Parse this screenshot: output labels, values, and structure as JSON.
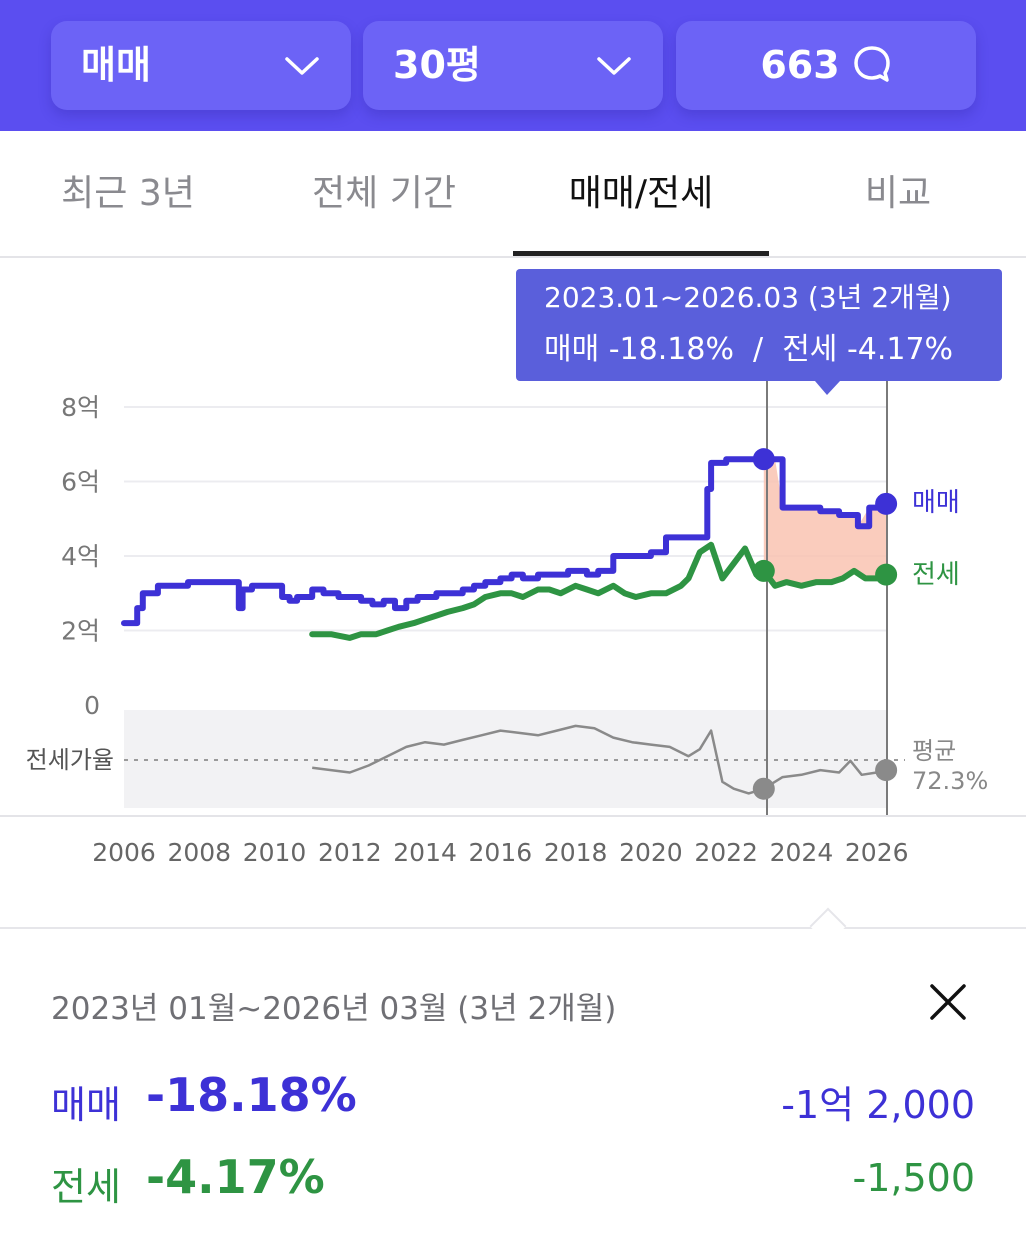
{
  "header": {
    "trade_type": "매매",
    "area": "30평",
    "comment_count": "663"
  },
  "tabs": [
    {
      "label": "최근 3년"
    },
    {
      "label": "전체 기간"
    },
    {
      "label": "매매/전세"
    },
    {
      "label": "비교"
    }
  ],
  "tooltip": {
    "range": "2023.01~2026.03 (3년 2개월)",
    "change": "매매 -18.18%  /  전세 -4.17%"
  },
  "chart_labels": {
    "y_ticks": [
      "8억",
      "6억",
      "4억",
      "2억",
      "0"
    ],
    "x_ticks": [
      "2006",
      "2008",
      "2010",
      "2012",
      "2014",
      "2016",
      "2018",
      "2020",
      "2022",
      "2024",
      "2026"
    ],
    "ratio_label": "전세가율",
    "avg_label": "평균",
    "avg_value": "72.3%",
    "sale_series": "매매",
    "jeonse_series": "전세"
  },
  "colors": {
    "sale": "#3D31D6",
    "jeonse": "#2E9443",
    "ratio": "#8a8a8a",
    "highlight": "#F9C3B1",
    "tooltip": "#5A5FDB",
    "header": "#5B4EF0"
  },
  "summary": {
    "range": "2023년 01월~2026년 03월 (3년 2개월)",
    "sale_label": "매매",
    "sale_pct": "-18.18%",
    "sale_amount": "-1억 2,000",
    "jeonse_label": "전세",
    "jeonse_pct": "-4.17%",
    "jeonse_amount": "-1,500"
  },
  "chart_data": {
    "type": "line",
    "ylim": [
      0,
      8
    ],
    "y_unit": "억",
    "xlim": [
      2006,
      2026.3
    ],
    "series": [
      {
        "name": "매매",
        "x": [
          2006.0,
          2006.2,
          2006.35,
          2006.5,
          2006.9,
          2007.0,
          2007.7,
          2008.0,
          2008.5,
          2009.0,
          2009.05,
          2009.15,
          2009.4,
          2009.8,
          2010.0,
          2010.2,
          2010.4,
          2010.6,
          2011.0,
          2011.3,
          2011.7,
          2012.0,
          2012.3,
          2012.6,
          2012.9,
          2013.2,
          2013.5,
          2013.8,
          2014.0,
          2014.3,
          2014.6,
          2015.0,
          2015.3,
          2015.6,
          2016.0,
          2016.3,
          2016.6,
          2017.0,
          2017.4,
          2017.8,
          2018.0,
          2018.3,
          2018.6,
          2019.0,
          2019.4,
          2019.8,
          2020.0,
          2020.4,
          2020.8,
          2021.2,
          2021.5,
          2021.6,
          2022.0,
          2022.5,
          2022.9,
          2023.0,
          2023.3,
          2023.5,
          2024.0,
          2024.5,
          2025.0,
          2025.4,
          2025.5,
          2025.8,
          2026.0,
          2026.25
        ],
        "values": [
          2.2,
          2.2,
          2.6,
          3.0,
          3.2,
          3.2,
          3.3,
          3.3,
          3.3,
          3.3,
          2.6,
          3.1,
          3.2,
          3.2,
          3.2,
          2.9,
          2.8,
          2.9,
          3.1,
          3.0,
          2.9,
          2.9,
          2.8,
          2.7,
          2.8,
          2.6,
          2.8,
          2.9,
          2.9,
          3.0,
          3.0,
          3.1,
          3.2,
          3.3,
          3.4,
          3.5,
          3.4,
          3.5,
          3.5,
          3.6,
          3.6,
          3.5,
          3.6,
          4.0,
          4.0,
          4.0,
          4.1,
          4.5,
          4.5,
          4.5,
          5.8,
          6.5,
          6.6,
          6.6,
          6.6,
          6.6,
          6.6,
          5.3,
          5.3,
          5.2,
          5.1,
          5.1,
          4.8,
          5.3,
          5.3,
          5.4
        ]
      },
      {
        "name": "전세",
        "x": [
          2011.0,
          2011.5,
          2012.0,
          2012.3,
          2012.7,
          2013.0,
          2013.3,
          2013.7,
          2014.0,
          2014.3,
          2014.6,
          2015.0,
          2015.3,
          2015.6,
          2016.0,
          2016.3,
          2016.6,
          2017.0,
          2017.3,
          2017.6,
          2018.0,
          2018.3,
          2018.6,
          2019.0,
          2019.3,
          2019.6,
          2020.0,
          2020.4,
          2020.8,
          2021.0,
          2021.3,
          2021.6,
          2021.9,
          2022.2,
          2022.5,
          2022.8,
          2023.0,
          2023.3,
          2023.6,
          2024.0,
          2024.4,
          2024.8,
          2025.1,
          2025.4,
          2025.7,
          2026.0,
          2026.25
        ],
        "values": [
          1.9,
          1.9,
          1.8,
          1.9,
          1.9,
          2.0,
          2.1,
          2.2,
          2.3,
          2.4,
          2.5,
          2.6,
          2.7,
          2.9,
          3.0,
          3.0,
          2.9,
          3.1,
          3.1,
          3.0,
          3.2,
          3.1,
          3.0,
          3.2,
          3.0,
          2.9,
          3.0,
          3.0,
          3.2,
          3.4,
          4.1,
          4.3,
          3.4,
          3.8,
          4.2,
          3.5,
          3.6,
          3.2,
          3.3,
          3.2,
          3.3,
          3.3,
          3.4,
          3.6,
          3.4,
          3.4,
          3.5
        ]
      }
    ],
    "ratio_series": {
      "name": "전세가율",
      "average": 72.3,
      "x": [
        2011.0,
        2011.5,
        2012.0,
        2012.5,
        2013.0,
        2013.5,
        2014.0,
        2014.5,
        2015.0,
        2015.5,
        2016.0,
        2016.5,
        2017.0,
        2017.5,
        2018.0,
        2018.5,
        2019.0,
        2019.5,
        2020.0,
        2020.5,
        2021.0,
        2021.3,
        2021.6,
        2021.9,
        2022.2,
        2022.6,
        2023.0,
        2023.5,
        2024.0,
        2024.5,
        2025.0,
        2025.3,
        2025.6,
        2026.0,
        2026.25
      ],
      "values": [
        66,
        65,
        64,
        67,
        71,
        75,
        77,
        76,
        78,
        80,
        82,
        81,
        80,
        82,
        84,
        83,
        79,
        77,
        76,
        75,
        71,
        74,
        82,
        60,
        57,
        55,
        57,
        62,
        63,
        65,
        64,
        69,
        63,
        64,
        65
      ]
    },
    "highlight_range": [
      "2023.01",
      "2026.03"
    ],
    "markers": [
      {
        "series": "매매",
        "x": 2023.0,
        "value": 6.6
      },
      {
        "series": "매매",
        "x": 2026.25,
        "value": 5.4
      },
      {
        "series": "전세",
        "x": 2023.0,
        "value": 3.6
      },
      {
        "series": "전세",
        "x": 2026.25,
        "value": 3.5
      }
    ]
  }
}
